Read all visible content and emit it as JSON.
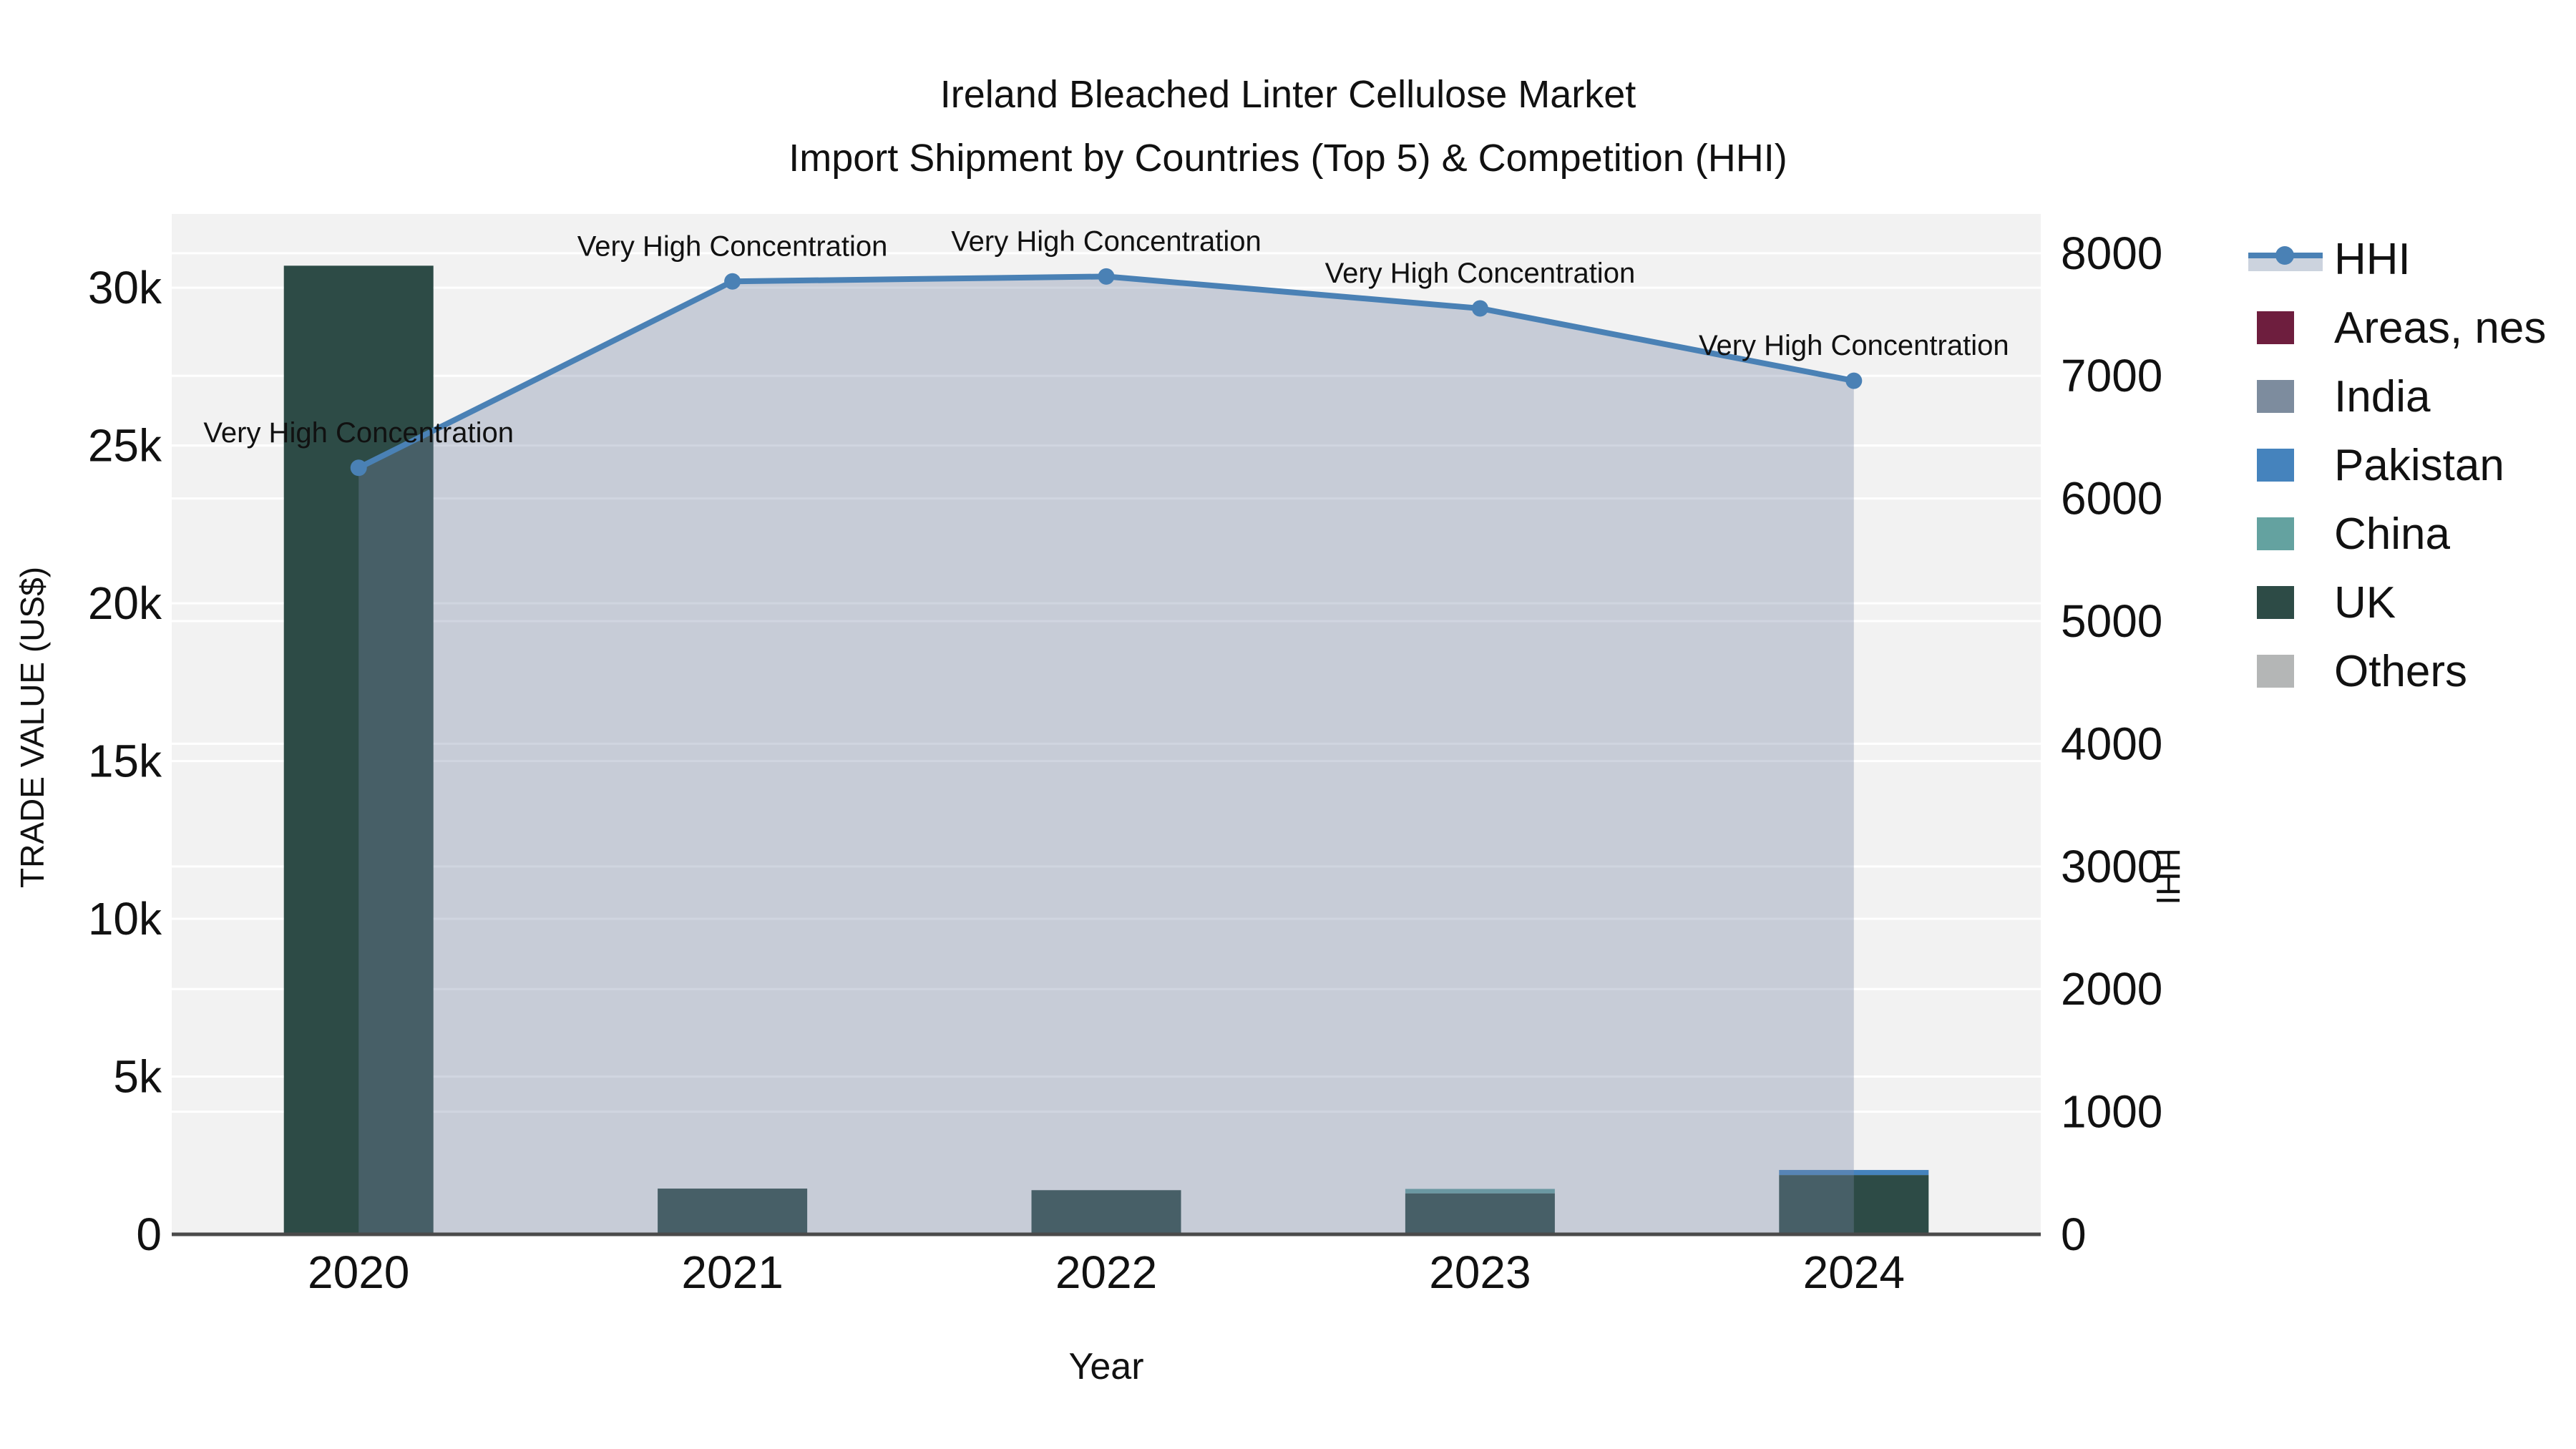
{
  "title": {
    "line1": "Ireland Bleached Linter Cellulose Market",
    "line2": "Import Shipment by Countries (Top 5) & Competition (HHI)"
  },
  "axes": {
    "x": {
      "label": "Year"
    },
    "y_left": {
      "label": "TRADE VALUE (US$)"
    },
    "y_right": {
      "label": "HHI"
    }
  },
  "legend": {
    "position": "right",
    "items": [
      {
        "key": "hhi",
        "label": "HHI",
        "type": "line",
        "color": "#4a81b5",
        "band_color": "#ccd3de"
      },
      {
        "key": "areas-nes",
        "label": "Areas, nes",
        "type": "swatch",
        "color": "#6e1e3e"
      },
      {
        "key": "india",
        "label": "India",
        "type": "swatch",
        "color": "#7d8c9e"
      },
      {
        "key": "pakistan",
        "label": "Pakistan",
        "type": "swatch",
        "color": "#4583bd"
      },
      {
        "key": "china",
        "label": "China",
        "type": "swatch",
        "color": "#64a2a0"
      },
      {
        "key": "uk",
        "label": "UK",
        "type": "swatch",
        "color": "#2d4b46"
      },
      {
        "key": "others",
        "label": "Others",
        "type": "swatch",
        "color": "#b4b6b6"
      }
    ]
  },
  "colors": {
    "plot_background": "#f2f2f2",
    "gridline": "#ffffff",
    "axis_line": "#4a4a4a",
    "hhi_line": "#4a81b5",
    "hhi_area_fill": "rgba(120,135,165,0.35)",
    "annotation_text": "#111111"
  },
  "chart_data": {
    "type": "bar",
    "subtype": "stacked-bars-with-dual-axis-line-area",
    "title": "Ireland Bleached Linter Cellulose Market — Import Shipment by Countries (Top 5) & Competition (HHI)",
    "xlabel": "Year",
    "ylabel_left": "TRADE VALUE (US$)",
    "ylabel_right": "HHI",
    "grid": true,
    "legend_position": "right",
    "categories": [
      "2020",
      "2021",
      "2022",
      "2023",
      "2024"
    ],
    "bar_value_unit": "US$",
    "series": [
      {
        "name": "Areas, nes",
        "color": "#6e1e3e",
        "values": [
          0,
          0,
          0,
          0,
          0
        ]
      },
      {
        "name": "India",
        "color": "#7d8c9e",
        "values": [
          0,
          0,
          0,
          0,
          0
        ]
      },
      {
        "name": "Pakistan",
        "color": "#4583bd",
        "values": [
          0,
          0,
          0,
          0,
          160
        ]
      },
      {
        "name": "China",
        "color": "#64a2a0",
        "values": [
          0,
          0,
          0,
          140,
          0
        ]
      },
      {
        "name": "UK",
        "color": "#2d4b46",
        "values": [
          30700,
          1450,
          1400,
          1300,
          1880
        ]
      },
      {
        "name": "Others",
        "color": "#b4b6b6",
        "values": [
          0,
          0,
          0,
          0,
          0
        ]
      }
    ],
    "stack_order_bottom_to_top": [
      "Others",
      "UK",
      "China",
      "Pakistan",
      "India",
      "Areas, nes"
    ],
    "line_series": {
      "name": "HHI",
      "axis": "right",
      "color": "#4a81b5",
      "fill": "rgba(120,135,165,0.35)",
      "values": [
        6250,
        7770,
        7810,
        7550,
        6960
      ]
    },
    "annotations": [
      {
        "category": "2020",
        "text": "Very High Concentration"
      },
      {
        "category": "2021",
        "text": "Very High Concentration"
      },
      {
        "category": "2022",
        "text": "Very High Concentration"
      },
      {
        "category": "2023",
        "text": "Very High Concentration"
      },
      {
        "category": "2024",
        "text": "Very High Concentration"
      }
    ],
    "y_left": {
      "range": [
        0,
        32340
      ],
      "ticks": [
        {
          "value": 0,
          "label": "0"
        },
        {
          "value": 5000,
          "label": "5k"
        },
        {
          "value": 10000,
          "label": "10k"
        },
        {
          "value": 15000,
          "label": "15k"
        },
        {
          "value": 20000,
          "label": "20k"
        },
        {
          "value": 25000,
          "label": "25k"
        },
        {
          "value": 30000,
          "label": "30k"
        }
      ]
    },
    "y_right": {
      "range": [
        0,
        8320
      ],
      "ticks": [
        {
          "value": 0,
          "label": "0"
        },
        {
          "value": 1000,
          "label": "1000"
        },
        {
          "value": 2000,
          "label": "2000"
        },
        {
          "value": 3000,
          "label": "3000"
        },
        {
          "value": 4000,
          "label": "4000"
        },
        {
          "value": 5000,
          "label": "5000"
        },
        {
          "value": 6000,
          "label": "6000"
        },
        {
          "value": 7000,
          "label": "7000"
        },
        {
          "value": 8000,
          "label": "8000"
        }
      ]
    }
  }
}
